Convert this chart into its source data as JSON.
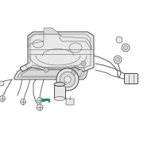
{
  "bg_color": "#ffffff",
  "line_color": "#666666",
  "dark_line": "#444444",
  "highlight_color": "#2a8a8a",
  "light_fill": "#e8e8e8",
  "mid_fill": "#d8d8d8",
  "white_fill": "#f5f5f5"
}
